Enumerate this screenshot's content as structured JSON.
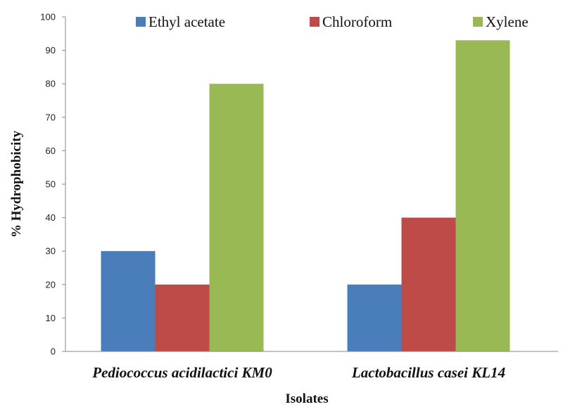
{
  "chart_data": {
    "type": "bar",
    "title": "",
    "xlabel": "Isolates",
    "ylabel": "% Hydrophobicity",
    "ylim": [
      0,
      100
    ],
    "yticks": [
      0,
      10,
      20,
      30,
      40,
      50,
      60,
      70,
      80,
      90,
      100
    ],
    "grid": false,
    "legend_position": "top",
    "categories": [
      "Pediococcus acidilactici KM0",
      "Lactobacillus casei KL14"
    ],
    "series": [
      {
        "name": "Ethyl acetate",
        "color": "#4a7ebb",
        "values": [
          30,
          20
        ]
      },
      {
        "name": "Chloroform",
        "color": "#be4b48",
        "values": [
          20,
          40
        ]
      },
      {
        "name": "Xylene",
        "color": "#98b954",
        "values": [
          80,
          93
        ]
      }
    ]
  }
}
